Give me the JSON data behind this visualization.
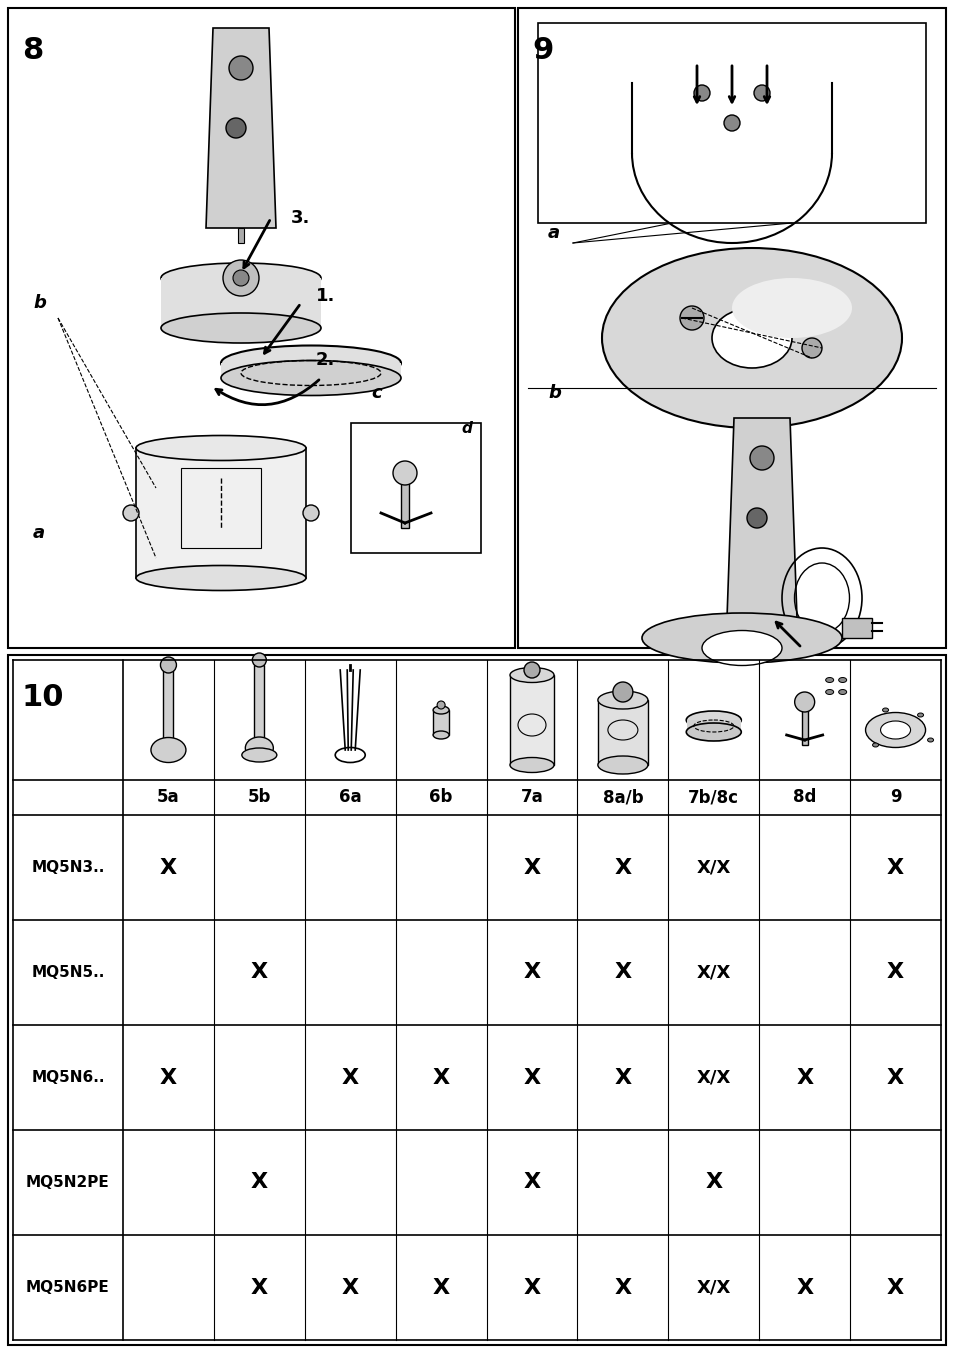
{
  "page_bg": "#ffffff",
  "border_color": "#000000",
  "section8_label": "8",
  "section9_label": "9",
  "section10_label": "10",
  "table_columns": [
    "5a",
    "5b",
    "6a",
    "6b",
    "7a",
    "8a/b",
    "7b/8c",
    "8d",
    "9"
  ],
  "table_rows": [
    "MQ5N3..",
    "MQ5N5..",
    "MQ5N6..",
    "MQ5N2PE",
    "MQ5N6PE"
  ],
  "table_data": [
    [
      "X",
      "",
      "",
      "",
      "X",
      "X",
      "X/X",
      "",
      "X"
    ],
    [
      "",
      "X",
      "",
      "",
      "X",
      "X",
      "X/X",
      "",
      "X"
    ],
    [
      "X",
      "",
      "X",
      "X",
      "X",
      "X",
      "X/X",
      "X",
      "X"
    ],
    [
      "",
      "X",
      "",
      "",
      "X",
      "",
      "X",
      "",
      ""
    ],
    [
      "",
      "X",
      "X",
      "X",
      "X",
      "X",
      "X/X",
      "X",
      "X"
    ]
  ],
  "label_a_8": "a",
  "label_b_8": "b",
  "label_c_8": "c",
  "label_d_8": "d",
  "label_a_9": "a",
  "label_b_9": "b",
  "step1": "1.",
  "step2": "2.",
  "step3": "3."
}
